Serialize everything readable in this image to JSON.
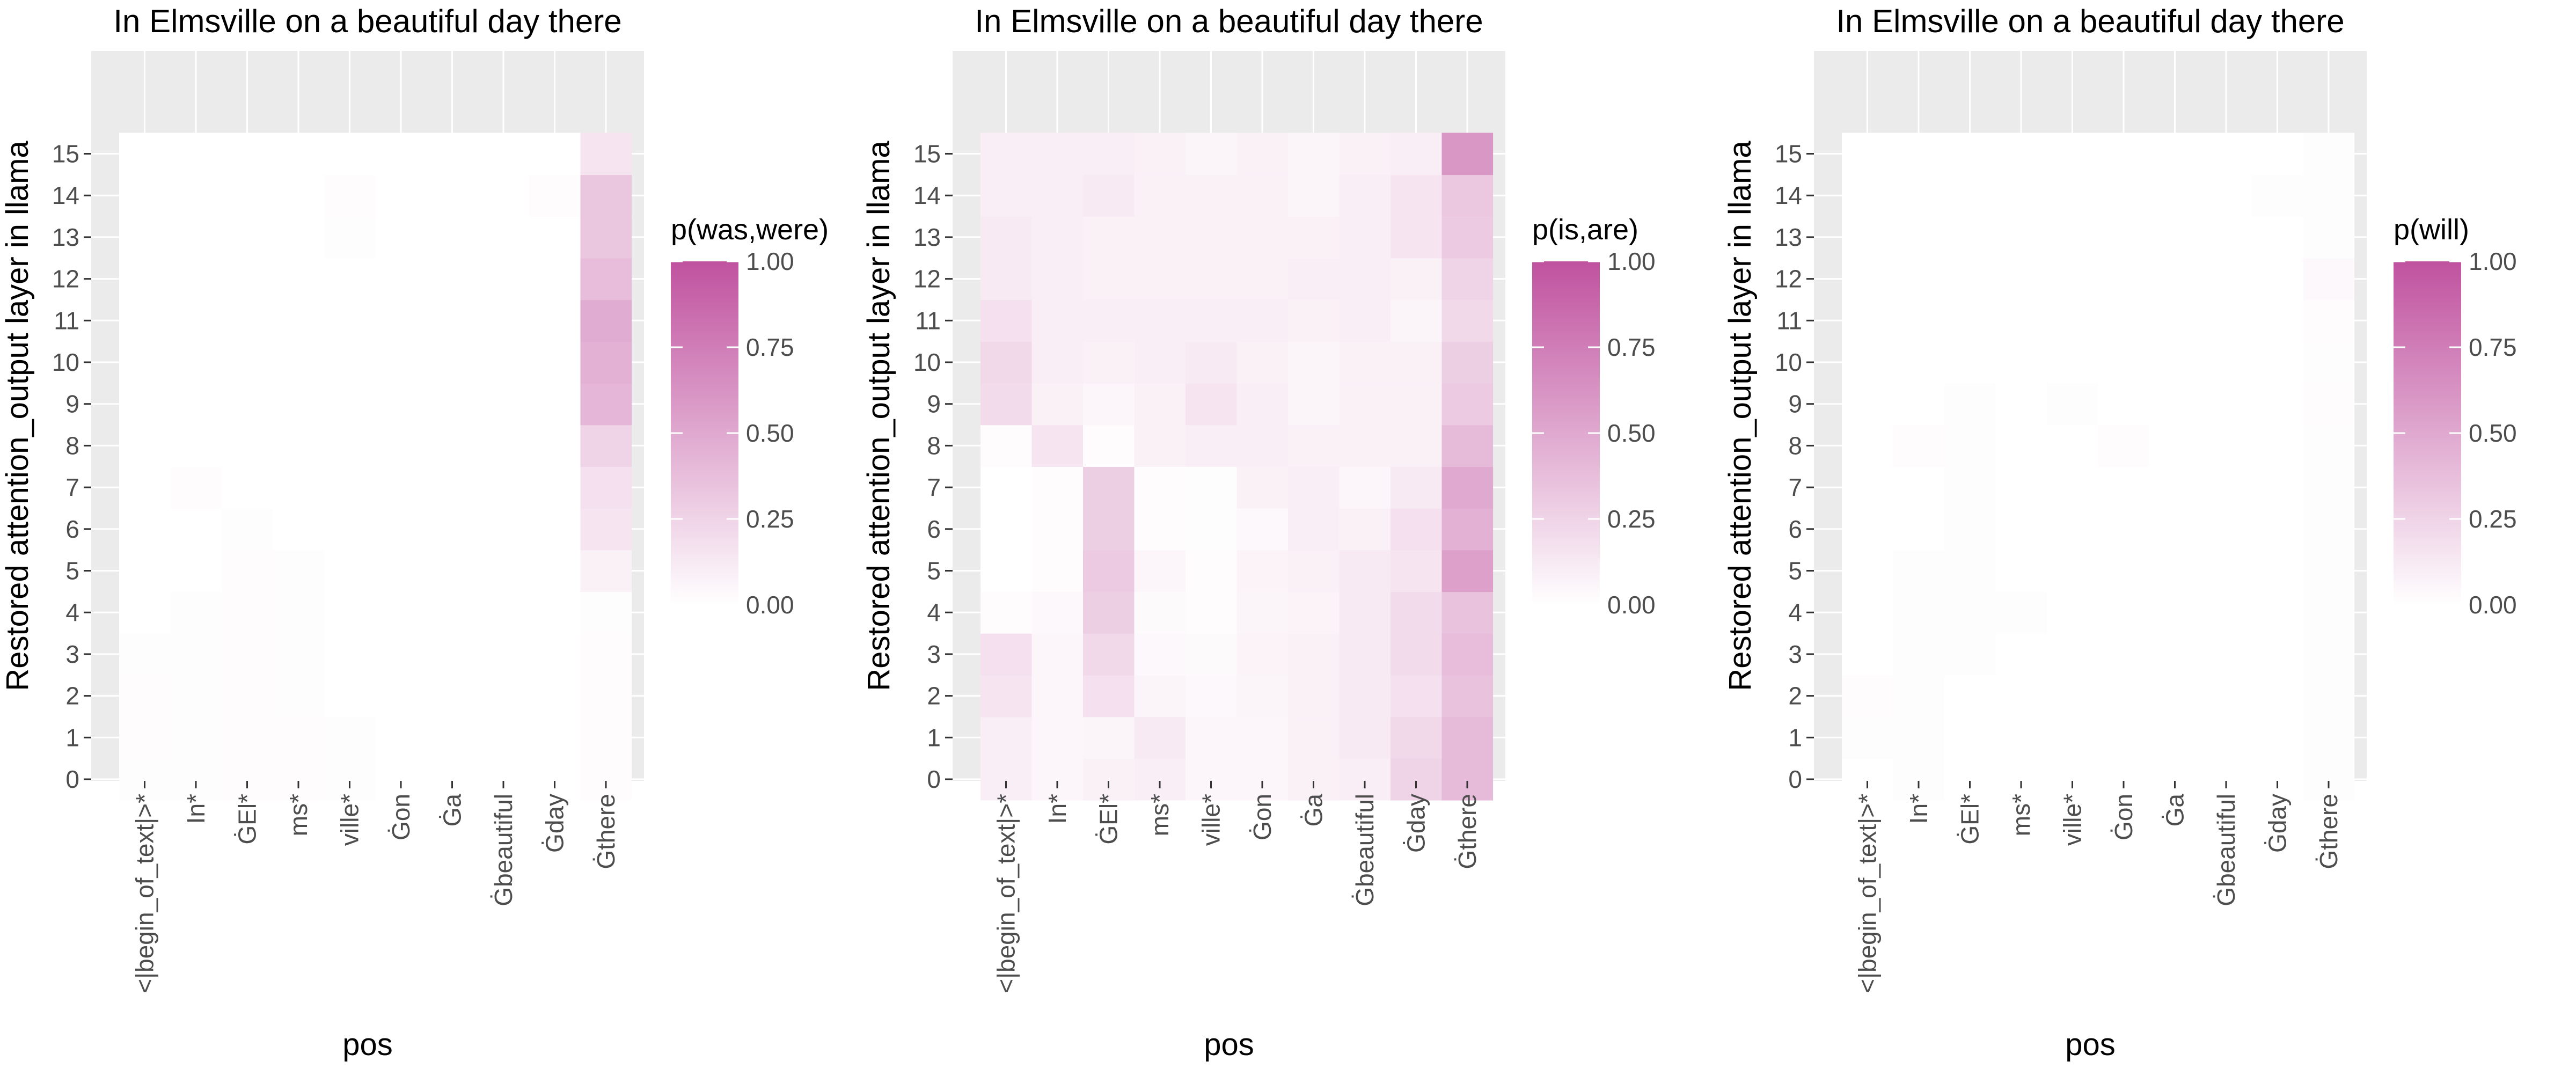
{
  "chart_data": [
    {
      "type": "heatmap",
      "title": "In Elmsville on a beautiful day there",
      "xlabel": "pos",
      "ylabel": "Restored attention_output layer in llama",
      "x_categories": [
        "<|begin_of_text|>*",
        "In*",
        "ĠEl*",
        "ms*",
        "ville*",
        "Ġon",
        "Ġa",
        "Ġbeautiful",
        "Ġday",
        "Ġthere"
      ],
      "y_categories": [
        "0",
        "1",
        "2",
        "3",
        "4",
        "5",
        "6",
        "7",
        "8",
        "9",
        "10",
        "11",
        "12",
        "13",
        "14",
        "15"
      ],
      "legend_title": "p(was,were)",
      "legend_ticks": [
        "0.00",
        "0.25",
        "0.50",
        "0.75",
        "1.00"
      ],
      "color_low": "#ffffff",
      "color_high": "#c0529f",
      "values": [
        [
          0.01,
          0.01,
          0.02,
          0.02,
          0.01,
          0.0,
          0.0,
          0.0,
          0.0,
          0.02
        ],
        [
          0.02,
          0.01,
          0.02,
          0.02,
          0.01,
          0.0,
          0.0,
          0.0,
          0.0,
          0.02
        ],
        [
          0.02,
          0.01,
          0.02,
          0.01,
          0.0,
          0.0,
          0.0,
          0.0,
          0.0,
          0.02
        ],
        [
          0.01,
          0.01,
          0.02,
          0.01,
          0.0,
          0.0,
          0.0,
          0.0,
          0.0,
          0.02
        ],
        [
          0.0,
          0.01,
          0.02,
          0.01,
          0.0,
          0.0,
          0.0,
          0.0,
          0.0,
          0.01
        ],
        [
          0.0,
          0.0,
          0.02,
          0.01,
          0.0,
          0.0,
          0.0,
          0.0,
          0.0,
          0.08
        ],
        [
          0.0,
          0.0,
          0.01,
          0.0,
          0.0,
          0.0,
          0.0,
          0.0,
          0.0,
          0.15
        ],
        [
          0.0,
          0.02,
          0.0,
          0.0,
          0.0,
          0.0,
          0.0,
          0.0,
          0.0,
          0.18
        ],
        [
          0.0,
          0.0,
          0.0,
          0.0,
          0.0,
          0.0,
          0.0,
          0.0,
          0.0,
          0.25
        ],
        [
          0.0,
          0.0,
          0.0,
          0.0,
          0.0,
          0.0,
          0.0,
          0.0,
          0.0,
          0.42
        ],
        [
          0.0,
          0.0,
          0.0,
          0.0,
          0.0,
          0.0,
          0.0,
          0.0,
          0.0,
          0.45
        ],
        [
          0.0,
          0.0,
          0.0,
          0.0,
          0.0,
          0.0,
          0.0,
          0.0,
          0.0,
          0.48
        ],
        [
          0.0,
          0.0,
          0.0,
          0.0,
          0.0,
          0.0,
          0.0,
          0.0,
          0.0,
          0.38
        ],
        [
          0.0,
          0.0,
          0.0,
          0.0,
          0.01,
          0.0,
          0.0,
          0.0,
          0.0,
          0.33
        ],
        [
          0.0,
          0.0,
          0.0,
          0.0,
          0.02,
          0.0,
          0.0,
          0.0,
          0.02,
          0.33
        ],
        [
          0.0,
          0.0,
          0.0,
          0.0,
          0.0,
          0.0,
          0.0,
          0.0,
          0.0,
          0.15
        ]
      ]
    },
    {
      "type": "heatmap",
      "title": "In Elmsville on a beautiful day there",
      "xlabel": "pos",
      "ylabel": "Restored attention_output layer in llama",
      "x_categories": [
        "<|begin_of_text|>*",
        "In*",
        "ĠEl*",
        "ms*",
        "ville*",
        "Ġon",
        "Ġa",
        "Ġbeautiful",
        "Ġday",
        "Ġthere"
      ],
      "y_categories": [
        "0",
        "1",
        "2",
        "3",
        "4",
        "5",
        "6",
        "7",
        "8",
        "9",
        "10",
        "11",
        "12",
        "13",
        "14",
        "15"
      ],
      "legend_title": "p(is,are)",
      "legend_ticks": [
        "0.00",
        "0.25",
        "0.50",
        "0.75",
        "1.00"
      ],
      "color_low": "#ffffff",
      "color_high": "#c0529f",
      "values": [
        [
          0.1,
          0.05,
          0.08,
          0.1,
          0.05,
          0.05,
          0.08,
          0.1,
          0.25,
          0.4
        ],
        [
          0.1,
          0.05,
          0.06,
          0.12,
          0.05,
          0.05,
          0.08,
          0.12,
          0.22,
          0.4
        ],
        [
          0.15,
          0.05,
          0.18,
          0.06,
          0.04,
          0.06,
          0.08,
          0.12,
          0.18,
          0.35
        ],
        [
          0.18,
          0.05,
          0.22,
          0.04,
          0.03,
          0.07,
          0.08,
          0.12,
          0.2,
          0.38
        ],
        [
          0.02,
          0.04,
          0.28,
          0.03,
          0.02,
          0.06,
          0.07,
          0.12,
          0.2,
          0.35
        ],
        [
          0.0,
          0.02,
          0.3,
          0.05,
          0.02,
          0.07,
          0.08,
          0.12,
          0.15,
          0.55
        ],
        [
          0.0,
          0.02,
          0.28,
          0.02,
          0.01,
          0.04,
          0.1,
          0.08,
          0.18,
          0.45
        ],
        [
          0.0,
          0.02,
          0.28,
          0.02,
          0.01,
          0.08,
          0.1,
          0.05,
          0.12,
          0.5
        ],
        [
          0.02,
          0.15,
          0.02,
          0.08,
          0.1,
          0.1,
          0.08,
          0.08,
          0.08,
          0.4
        ],
        [
          0.2,
          0.08,
          0.05,
          0.08,
          0.15,
          0.1,
          0.06,
          0.08,
          0.08,
          0.3
        ],
        [
          0.22,
          0.1,
          0.08,
          0.1,
          0.12,
          0.08,
          0.06,
          0.08,
          0.08,
          0.28
        ],
        [
          0.18,
          0.1,
          0.1,
          0.1,
          0.1,
          0.1,
          0.08,
          0.1,
          0.06,
          0.22
        ],
        [
          0.12,
          0.1,
          0.08,
          0.08,
          0.08,
          0.08,
          0.1,
          0.1,
          0.08,
          0.25
        ],
        [
          0.12,
          0.1,
          0.08,
          0.08,
          0.08,
          0.08,
          0.08,
          0.1,
          0.15,
          0.3
        ],
        [
          0.1,
          0.1,
          0.12,
          0.08,
          0.08,
          0.08,
          0.06,
          0.1,
          0.15,
          0.32
        ],
        [
          0.1,
          0.1,
          0.1,
          0.08,
          0.06,
          0.08,
          0.06,
          0.08,
          0.1,
          0.6
        ]
      ]
    },
    {
      "type": "heatmap",
      "title": "In Elmsville on a beautiful day there",
      "xlabel": "pos",
      "ylabel": "Restored attention_output layer in llama",
      "x_categories": [
        "<|begin_of_text|>*",
        "In*",
        "ĠEl*",
        "ms*",
        "ville*",
        "Ġon",
        "Ġa",
        "Ġbeautiful",
        "Ġday",
        "Ġthere"
      ],
      "y_categories": [
        "0",
        "1",
        "2",
        "3",
        "4",
        "5",
        "6",
        "7",
        "8",
        "9",
        "10",
        "11",
        "12",
        "13",
        "14",
        "15"
      ],
      "legend_title": "p(will)",
      "legend_ticks": [
        "0.00",
        "0.25",
        "0.50",
        "0.75",
        "1.00"
      ],
      "color_low": "#ffffff",
      "color_high": "#c0529f",
      "values": [
        [
          0.0,
          0.01,
          0.0,
          0.0,
          0.0,
          0.0,
          0.0,
          0.0,
          0.0,
          0.01
        ],
        [
          0.01,
          0.01,
          0.0,
          0.0,
          0.0,
          0.0,
          0.0,
          0.0,
          0.0,
          0.01
        ],
        [
          0.02,
          0.01,
          0.0,
          0.0,
          0.0,
          0.0,
          0.0,
          0.0,
          0.0,
          0.01
        ],
        [
          0.0,
          0.01,
          0.01,
          0.0,
          0.0,
          0.0,
          0.0,
          0.0,
          0.0,
          0.01
        ],
        [
          0.0,
          0.01,
          0.01,
          0.01,
          0.0,
          0.0,
          0.0,
          0.0,
          0.0,
          0.01
        ],
        [
          0.0,
          0.01,
          0.01,
          0.0,
          0.0,
          0.0,
          0.0,
          0.0,
          0.0,
          0.01
        ],
        [
          0.0,
          0.0,
          0.01,
          0.0,
          0.0,
          0.0,
          0.0,
          0.0,
          0.0,
          0.01
        ],
        [
          0.0,
          0.0,
          0.01,
          0.0,
          0.0,
          0.0,
          0.0,
          0.0,
          0.0,
          0.01
        ],
        [
          0.0,
          0.02,
          0.01,
          0.0,
          0.0,
          0.02,
          0.0,
          0.0,
          0.0,
          0.01
        ],
        [
          0.0,
          0.0,
          0.01,
          0.0,
          0.01,
          0.0,
          0.0,
          0.0,
          0.0,
          0.02
        ],
        [
          0.0,
          0.0,
          0.0,
          0.0,
          0.0,
          0.0,
          0.0,
          0.0,
          0.0,
          0.01
        ],
        [
          0.0,
          0.0,
          0.0,
          0.0,
          0.0,
          0.0,
          0.0,
          0.0,
          0.0,
          0.02
        ],
        [
          0.0,
          0.0,
          0.0,
          0.0,
          0.0,
          0.0,
          0.0,
          0.0,
          0.0,
          0.04
        ],
        [
          0.0,
          0.0,
          0.0,
          0.0,
          0.0,
          0.0,
          0.0,
          0.0,
          0.0,
          0.01
        ],
        [
          0.0,
          0.0,
          0.0,
          0.0,
          0.0,
          0.0,
          0.0,
          0.0,
          0.01,
          0.01
        ],
        [
          0.0,
          0.0,
          0.0,
          0.0,
          0.0,
          0.0,
          0.0,
          0.0,
          0.0,
          0.01
        ]
      ]
    }
  ]
}
